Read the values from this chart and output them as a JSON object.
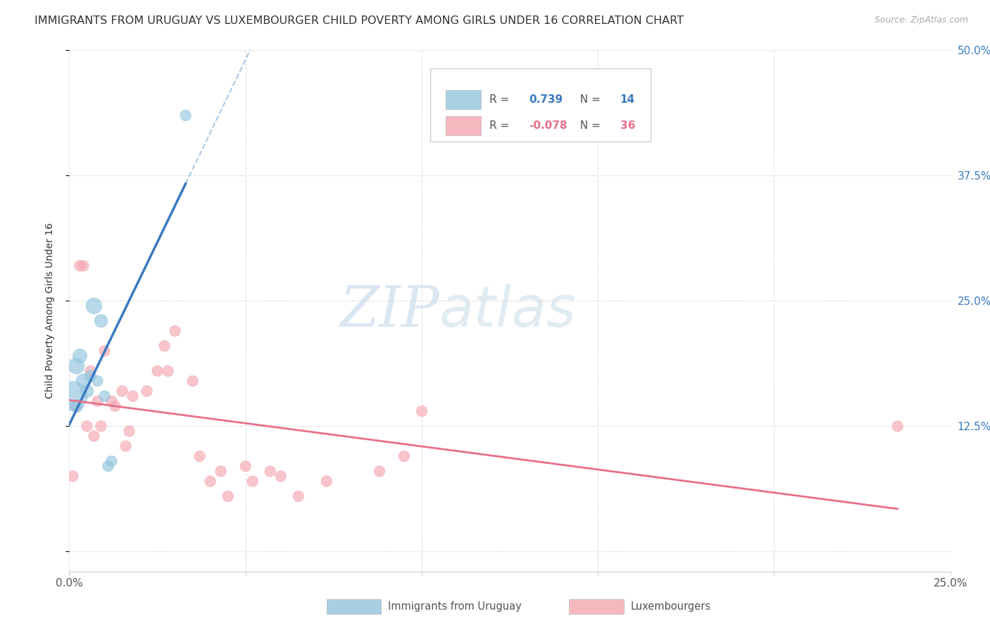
{
  "title": "IMMIGRANTS FROM URUGUAY VS LUXEMBOURGER CHILD POVERTY AMONG GIRLS UNDER 16 CORRELATION CHART",
  "source": "Source: ZipAtlas.com",
  "ylabel": "Child Poverty Among Girls Under 16",
  "xlim": [
    0.0,
    0.25
  ],
  "ylim": [
    -0.02,
    0.5
  ],
  "xticks": [
    0.0,
    0.05,
    0.1,
    0.15,
    0.2,
    0.25
  ],
  "yticks": [
    0.0,
    0.125,
    0.25,
    0.375,
    0.5
  ],
  "xtick_labels": [
    "0.0%",
    "",
    "",
    "",
    "",
    "25.0%"
  ],
  "ytick_labels": [
    "",
    "12.5%",
    "25.0%",
    "37.5%",
    "50.0%"
  ],
  "legend1_R": "0.739",
  "legend1_N": "14",
  "legend2_R": "-0.078",
  "legend2_N": "36",
  "blue_color": "#92c5de",
  "pink_color": "#f4a6b0",
  "regression_blue": "#3a7abf",
  "regression_pink": "#e8708a",
  "dashed_line_color": "#a8c8e8",
  "watermark_zip": "ZIP",
  "watermark_atlas": "atlas",
  "blue_scatter_x": [
    0.001,
    0.002,
    0.002,
    0.003,
    0.004,
    0.005,
    0.006,
    0.007,
    0.008,
    0.009,
    0.01,
    0.011,
    0.012,
    0.033
  ],
  "blue_scatter_y": [
    0.155,
    0.185,
    0.145,
    0.195,
    0.17,
    0.16,
    0.175,
    0.245,
    0.17,
    0.23,
    0.155,
    0.085,
    0.09,
    0.435
  ],
  "blue_scatter_size": [
    500,
    150,
    100,
    120,
    120,
    100,
    80,
    150,
    70,
    100,
    70,
    70,
    70,
    70
  ],
  "pink_scatter_x": [
    0.001,
    0.002,
    0.003,
    0.004,
    0.005,
    0.006,
    0.007,
    0.008,
    0.009,
    0.01,
    0.012,
    0.013,
    0.015,
    0.016,
    0.017,
    0.018,
    0.022,
    0.025,
    0.027,
    0.028,
    0.03,
    0.035,
    0.037,
    0.04,
    0.043,
    0.045,
    0.05,
    0.052,
    0.057,
    0.06,
    0.065,
    0.073,
    0.088,
    0.095,
    0.1,
    0.235
  ],
  "pink_scatter_y": [
    0.075,
    0.145,
    0.285,
    0.285,
    0.125,
    0.18,
    0.115,
    0.15,
    0.125,
    0.2,
    0.15,
    0.145,
    0.16,
    0.105,
    0.12,
    0.155,
    0.16,
    0.18,
    0.205,
    0.18,
    0.22,
    0.17,
    0.095,
    0.07,
    0.08,
    0.055,
    0.085,
    0.07,
    0.08,
    0.075,
    0.055,
    0.07,
    0.08,
    0.095,
    0.14,
    0.125
  ],
  "pink_scatter_size": [
    70,
    70,
    70,
    70,
    70,
    70,
    70,
    70,
    70,
    70,
    70,
    70,
    70,
    70,
    70,
    70,
    70,
    70,
    70,
    70,
    70,
    70,
    70,
    70,
    70,
    70,
    70,
    70,
    70,
    70,
    70,
    70,
    70,
    70,
    70,
    70
  ],
  "grid_color": "#e0e0e0",
  "title_fontsize": 11.5,
  "axis_label_fontsize": 10,
  "tick_fontsize": 11
}
